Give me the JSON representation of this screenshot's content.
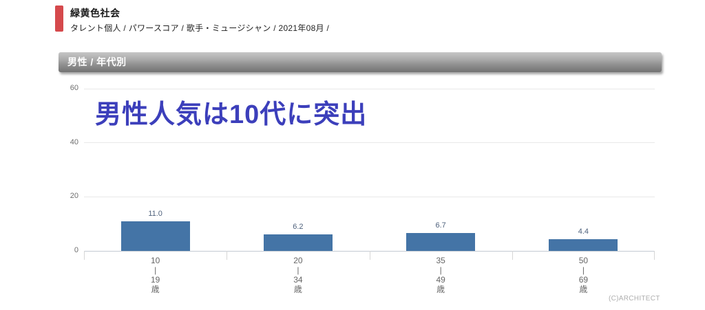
{
  "page": {
    "title": "緑黄色社会",
    "breadcrumb": "タレント個人 / パワースコア / 歌手・ミュージシャン / 2021年08月 /",
    "section_header": "男性 / 年代別",
    "copyright": "(C)ARCHITECT",
    "accent_color": "#d5494c"
  },
  "chart_data": {
    "type": "bar",
    "title": "男性 / 年代別",
    "categories": [
      "10-19歳",
      "20-34歳",
      "35-49歳",
      "50-69歳"
    ],
    "category_lines": [
      [
        "10",
        "|",
        "19",
        "歳"
      ],
      [
        "20",
        "|",
        "34",
        "歳"
      ],
      [
        "35",
        "|",
        "49",
        "歳"
      ],
      [
        "50",
        "|",
        "69",
        "歳"
      ]
    ],
    "values": [
      11.0,
      6.2,
      6.7,
      4.4
    ],
    "value_labels": [
      "11.0",
      "6.2",
      "6.7",
      "4.4"
    ],
    "ylim": [
      0,
      60
    ],
    "yticks": [
      0,
      20,
      40,
      60
    ],
    "grid": true,
    "legend": "none",
    "bar_color": "#4474a6",
    "axis_label_color": "#6e6e6e",
    "annotation": {
      "text": "男性人気は10代に突出",
      "color": "#3c3fbb"
    }
  }
}
